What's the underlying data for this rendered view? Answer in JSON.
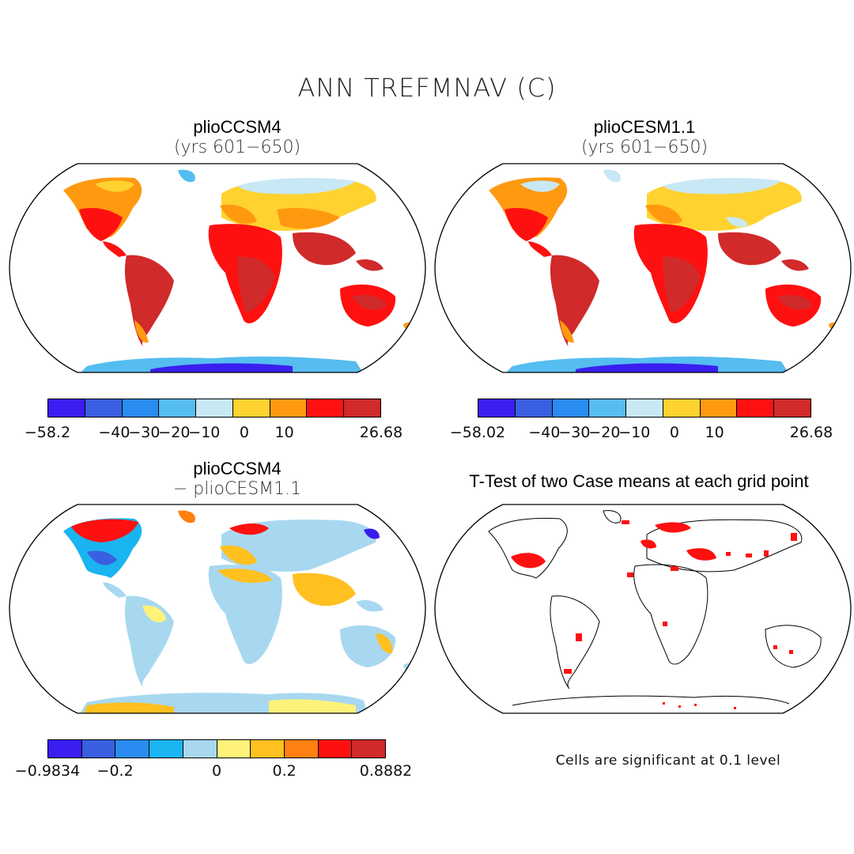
{
  "title": "ANN TREFMNAV (C)",
  "panels": [
    {
      "id": "tl",
      "title": "plioCCSM4",
      "subtitle": "(yrs 601−650)"
    },
    {
      "id": "tr",
      "title": "plioCESM1.1",
      "subtitle": "(yrs 601−650)"
    },
    {
      "id": "bl",
      "title": "plioCCSM4",
      "subtitle": "− plioCESM1.1"
    },
    {
      "id": "br",
      "title": "T-Test of two Case means at each grid point",
      "subtitle": ""
    }
  ],
  "colorbars": {
    "tl": {
      "colors": [
        "#3a1ef0",
        "#3a5fe0",
        "#2a8cf0",
        "#55bdf0",
        "#c8e8f5",
        "#ffd230",
        "#ff9a10",
        "#ff1010",
        "#d02a2a"
      ],
      "labels": [
        "−58.2",
        "−40",
        "−30",
        "−20",
        "−10",
        "0",
        "10",
        "26.68"
      ]
    },
    "tr": {
      "colors": [
        "#3a1ef0",
        "#3a5fe0",
        "#2a8cf0",
        "#55bdf0",
        "#c8e8f5",
        "#ffd230",
        "#ff9a10",
        "#ff1010",
        "#d02a2a"
      ],
      "labels": [
        "−58.02",
        "−40",
        "−30",
        "−20",
        "−10",
        "0",
        "10",
        "26.68"
      ]
    },
    "bl": {
      "colors": [
        "#3a1ef0",
        "#3a5fe0",
        "#2a8cf0",
        "#1ab4f0",
        "#a8d8f0",
        "#fff27a",
        "#ffc020",
        "#ff8010",
        "#ff1010",
        "#d02a2a"
      ],
      "labels": [
        "−0.9834",
        "−0.2",
        "0",
        "0.2",
        "0.8882"
      ]
    }
  },
  "significance_note": "Cells are significant at 0.1 level",
  "legend_icons": [
    "colorbar-swatch"
  ],
  "accent_red": "#ff1010"
}
